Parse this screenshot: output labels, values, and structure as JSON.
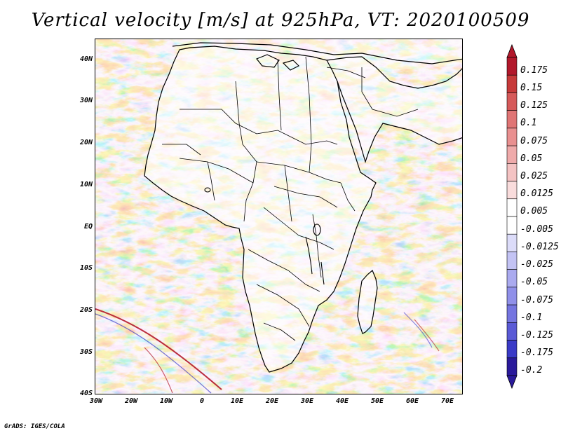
{
  "title": "Vertical velocity [m/s] at 925hPa, VT: 2020100509",
  "credit": "GrADS: IGES/COLA",
  "axes": {
    "lat_labels": [
      "40N",
      "30N",
      "20N",
      "10N",
      "EQ",
      "10S",
      "20S",
      "30S",
      "40S"
    ],
    "lon_labels": [
      "30W",
      "20W",
      "10W",
      "0",
      "10E",
      "20E",
      "30E",
      "40E",
      "50E",
      "60E",
      "70E"
    ]
  },
  "colorbar": {
    "labels": [
      "0.175",
      "0.15",
      "0.125",
      "0.1",
      "0.075",
      "0.05",
      "0.025",
      "0.0125",
      "0.005",
      "-0.005",
      "-0.0125",
      "-0.025",
      "-0.05",
      "-0.075",
      "-0.1",
      "-0.125",
      "-0.175",
      "-0.2"
    ],
    "colors": [
      "#b2182b",
      "#c73a3a",
      "#d65a5a",
      "#e07575",
      "#e99090",
      "#efaaaa",
      "#f4c3c3",
      "#f9dcdc",
      "#ffffff",
      "#ffffff",
      "#dcdcf9",
      "#c3c3f4",
      "#aaaaef",
      "#9090e9",
      "#7575e0",
      "#5a5ad6",
      "#3a3ac7",
      "#2a1a9b"
    ]
  },
  "map": {
    "variable": "vertical-velocity",
    "level": "925hPa",
    "land_fill": "#ffffff",
    "positive_color": "#e35d5d",
    "negative_color": "#6a6ae0"
  }
}
